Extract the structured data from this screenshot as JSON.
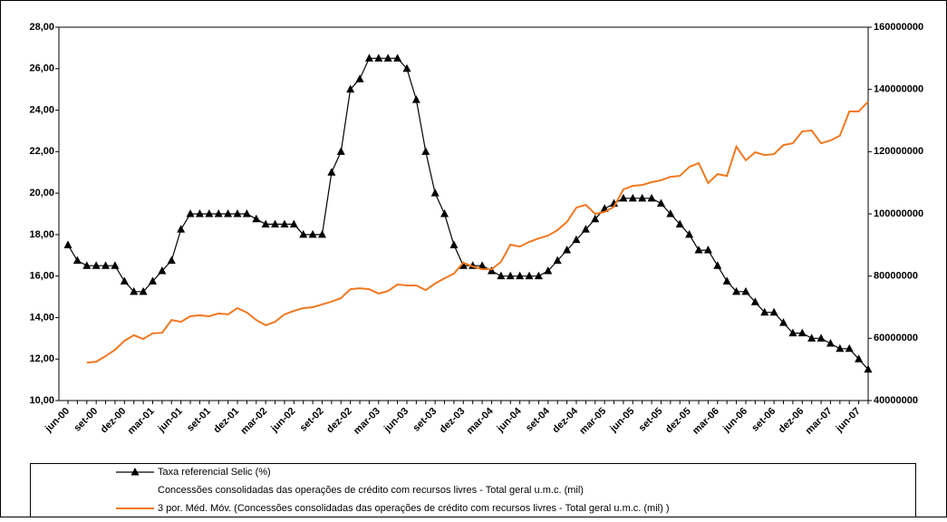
{
  "chart_data": {
    "type": "line",
    "categories": [
      "jun-00",
      null,
      null,
      "set-00",
      null,
      null,
      "dez-00",
      null,
      null,
      "mar-01",
      null,
      null,
      "jun-01",
      null,
      null,
      "set-01",
      null,
      null,
      "dez-01",
      null,
      null,
      "mar-02",
      null,
      null,
      "jun-02",
      null,
      null,
      "set-02",
      null,
      null,
      "dez-02",
      null,
      null,
      "mar-03",
      null,
      null,
      "jun-03",
      null,
      null,
      "set-03",
      null,
      null,
      "dez-03",
      null,
      null,
      "mar-04",
      null,
      null,
      "jun-04",
      null,
      null,
      "set-04",
      null,
      null,
      "dez-04",
      null,
      null,
      "mar-05",
      null,
      null,
      "jun-05",
      null,
      null,
      "set-05",
      null,
      null,
      "dez-05",
      null,
      null,
      "mar-06",
      null,
      null,
      "jun-06",
      null,
      null,
      "set-06",
      null,
      null,
      "dez-06",
      null,
      null,
      "mar-07",
      null,
      null,
      "jun-07",
      null
    ],
    "ylim": [
      10,
      28
    ],
    "yticks": [
      {
        "value": 10,
        "label": "10,00"
      },
      {
        "value": 12,
        "label": "12,00"
      },
      {
        "value": 14,
        "label": "14,00"
      },
      {
        "value": 16,
        "label": "16,00"
      },
      {
        "value": 18,
        "label": "18,00"
      },
      {
        "value": 20,
        "label": "20,00"
      },
      {
        "value": 22,
        "label": "22,00"
      },
      {
        "value": 24,
        "label": "24,00"
      },
      {
        "value": 26,
        "label": "26,00"
      },
      {
        "value": 28,
        "label": "28,00"
      }
    ],
    "y2lim": [
      40000000,
      160000000
    ],
    "y2ticks": [
      40000000,
      60000000,
      80000000,
      100000000,
      120000000,
      140000000,
      160000000
    ],
    "grid": false,
    "legend": "bottom",
    "series": [
      {
        "name": "Taxa referencial Selic (%)",
        "color": "#000000",
        "marker": "triangle",
        "axis": "y",
        "values": [
          17.5,
          16.75,
          16.5,
          16.5,
          16.5,
          16.5,
          15.75,
          15.25,
          15.25,
          15.75,
          16.25,
          16.75,
          18.25,
          19,
          19,
          19,
          19,
          19,
          19,
          19,
          18.75,
          18.5,
          18.5,
          18.5,
          18.5,
          18,
          18,
          18,
          21,
          22,
          25,
          25.5,
          26.5,
          26.5,
          26.5,
          26.5,
          26,
          24.5,
          22,
          20,
          19,
          17.5,
          16.5,
          16.5,
          16.5,
          16.25,
          16,
          16,
          16,
          16,
          16,
          16.25,
          16.75,
          17.25,
          17.75,
          18.25,
          18.75,
          19.25,
          19.5,
          19.75,
          19.75,
          19.75,
          19.75,
          19.5,
          19,
          18.5,
          18,
          17.25,
          17.25,
          16.5,
          15.75,
          15.25,
          15.25,
          14.75,
          14.25,
          14.25,
          13.75,
          13.25,
          13.25,
          13,
          13,
          12.75,
          12.5,
          12.5,
          12,
          11.5
        ]
      },
      {
        "name": "Concessões consolidadas das operações de crédito com recursos livres - Total geral u.m.c. (mil)",
        "axis": "y2",
        "values": [
          null,
          null,
          null,
          null,
          null,
          null,
          null,
          null,
          null,
          null,
          null,
          null,
          null,
          null,
          null,
          null,
          null,
          null,
          null,
          null,
          null,
          null,
          null,
          null,
          null,
          null,
          null,
          null,
          null,
          null,
          null,
          null,
          null,
          null,
          null,
          null,
          null,
          null,
          null,
          null,
          null,
          null,
          null,
          null,
          null,
          null,
          null,
          null,
          null,
          null,
          null,
          null,
          null,
          null,
          null,
          null,
          null,
          null,
          null,
          null,
          null,
          null,
          null,
          null,
          null,
          null,
          null,
          null,
          null,
          null,
          null,
          null,
          null,
          null,
          null,
          null,
          null,
          null,
          null,
          null,
          null,
          null,
          null,
          null,
          null,
          null
        ]
      },
      {
        "name": "3 por. Méd. Móv. (Concessões consolidadas das operações de crédito com recursos livres - Total geral u.m.c. (mil) )",
        "color": "#f07820",
        "axis": "y2",
        "values": [
          null,
          null,
          52200000,
          52500000,
          54300000,
          56300000,
          59200000,
          61000000,
          59800000,
          61600000,
          61800000,
          65900000,
          65300000,
          67100000,
          67400000,
          67100000,
          68000000,
          67700000,
          69700000,
          68300000,
          65900000,
          64200000,
          65300000,
          67700000,
          68800000,
          69700000,
          70000000,
          70900000,
          71800000,
          72900000,
          75800000,
          76100000,
          75800000,
          74400000,
          75200000,
          77300000,
          77000000,
          77000000,
          75500000,
          77600000,
          79300000,
          80800000,
          84300000,
          83100000,
          82200000,
          82200000,
          84600000,
          90100000,
          89500000,
          91000000,
          92100000,
          93000000,
          94800000,
          97400000,
          102000000,
          102900000,
          100000000,
          100600000,
          102300000,
          107900000,
          109000000,
          109300000,
          110200000,
          110800000,
          111900000,
          112200000,
          115100000,
          116300000,
          109900000,
          112800000,
          112200000,
          121600000,
          117200000,
          119800000,
          118900000,
          119200000,
          122100000,
          122700000,
          126500000,
          126800000,
          122700000,
          123600000,
          125100000,
          132900000,
          132900000,
          136100000
        ]
      }
    ]
  }
}
